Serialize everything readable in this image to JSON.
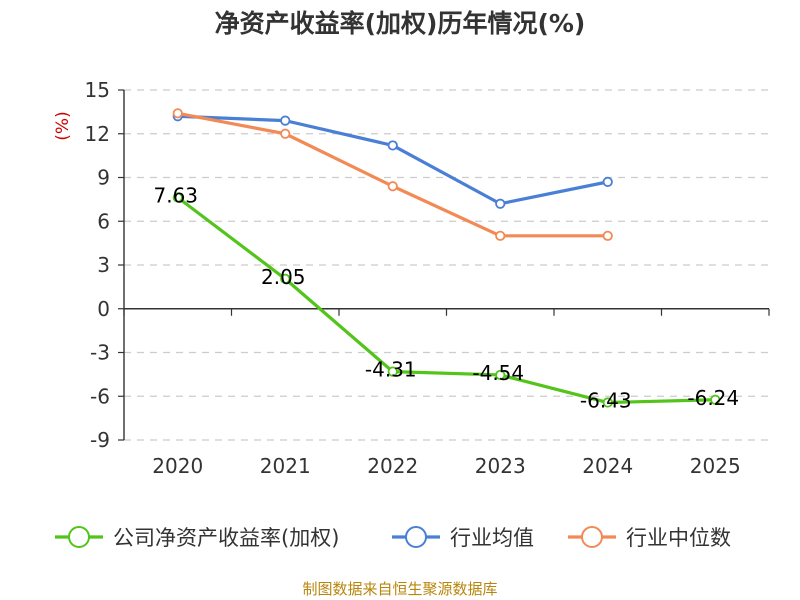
{
  "chart_data": {
    "type": "line",
    "title": "净资产收益率(加权)历年情况(%)",
    "ylabel": "(%)",
    "categories": [
      "2020",
      "2021",
      "2022",
      "2023",
      "2024",
      "2025"
    ],
    "ylim": [
      -9,
      15
    ],
    "yticks": [
      15,
      12,
      9,
      6,
      3,
      0,
      -3,
      -6,
      -9
    ],
    "series": [
      {
        "name": "公司净资产收益率(加权)",
        "color": "#52c41a",
        "values": [
          7.63,
          2.05,
          -4.31,
          -4.54,
          -6.43,
          -6.24
        ],
        "labels": [
          "7.63",
          "2.05",
          "-4.31",
          "-4.54",
          "-6.43",
          "-6.24"
        ]
      },
      {
        "name": "行业均值",
        "color": "#4a7fd6",
        "values": [
          13.2,
          12.9,
          11.2,
          7.2,
          8.7,
          null
        ]
      },
      {
        "name": "行业中位数",
        "color": "#f28a56",
        "values": [
          13.4,
          12.0,
          8.4,
          5.0,
          5.0,
          null
        ]
      }
    ],
    "source": "制图数据来自恒生聚源数据库"
  }
}
